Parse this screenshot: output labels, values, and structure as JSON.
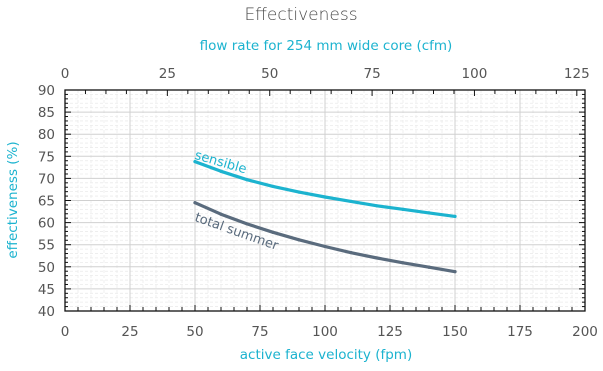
{
  "chart_data": {
    "type": "line",
    "title": "Effectiveness",
    "xlabel": "active face velocity (fpm)",
    "ylabel": "effectiveness (%)",
    "x2label": "flow  rate  for 254 mm wide core (cfm)",
    "xlim": [
      0,
      200
    ],
    "ylim": [
      40,
      90
    ],
    "x2lim": [
      0,
      127
    ],
    "x_ticks": [
      0,
      25,
      50,
      75,
      100,
      125,
      150,
      175,
      200
    ],
    "y_ticks": [
      40,
      45,
      50,
      55,
      60,
      65,
      70,
      75,
      80,
      85,
      90
    ],
    "x2_ticks": [
      0,
      25,
      50,
      75,
      100,
      125
    ],
    "grid": true,
    "legend": "none",
    "series": [
      {
        "name": "sensible",
        "color": "#1cb3cf",
        "x": [
          50,
          60,
          70,
          80,
          90,
          100,
          110,
          120,
          130,
          140,
          150
        ],
        "y": [
          73.8,
          71.6,
          69.7,
          68.2,
          66.9,
          65.8,
          64.8,
          63.8,
          63.0,
          62.2,
          61.4
        ]
      },
      {
        "name": "total summer",
        "color": "#5a6b7d",
        "x": [
          50,
          60,
          70,
          80,
          90,
          100,
          110,
          120,
          130,
          140,
          150
        ],
        "y": [
          64.5,
          61.9,
          59.7,
          57.8,
          56.1,
          54.6,
          53.2,
          52.0,
          50.9,
          49.9,
          48.9
        ]
      }
    ]
  }
}
